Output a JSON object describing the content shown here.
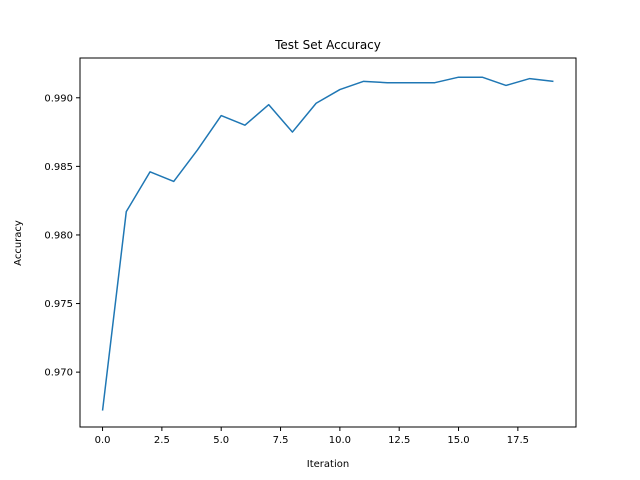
{
  "chart_data": {
    "type": "line",
    "title": "Test Set Accuracy",
    "xlabel": "Iteration",
    "ylabel": "Accuracy",
    "xlim": [
      -0.95,
      19.95
    ],
    "ylim": [
      0.966,
      0.9929
    ],
    "xticks": [
      0.0,
      2.5,
      5.0,
      7.5,
      10.0,
      12.5,
      15.0,
      17.5
    ],
    "xtick_labels": [
      "0.0",
      "2.5",
      "5.0",
      "7.5",
      "10.0",
      "12.5",
      "15.0",
      "17.5"
    ],
    "yticks": [
      0.97,
      0.975,
      0.98,
      0.985,
      0.99
    ],
    "ytick_labels": [
      "0.970",
      "0.975",
      "0.980",
      "0.985",
      "0.990"
    ],
    "grid": false,
    "series": [
      {
        "color": "#1f77b4",
        "x": [
          0,
          1,
          2,
          3,
          4,
          5,
          6,
          7,
          8,
          9,
          10,
          11,
          12,
          13,
          14,
          15,
          16,
          17,
          18,
          19
        ],
        "values": [
          0.9672,
          0.9817,
          0.9846,
          0.9839,
          0.9862,
          0.9887,
          0.988,
          0.9895,
          0.9875,
          0.9896,
          0.9906,
          0.9912,
          0.9911,
          0.9911,
          0.9911,
          0.9915,
          0.9915,
          0.9909,
          0.9914,
          0.9912
        ]
      }
    ]
  }
}
